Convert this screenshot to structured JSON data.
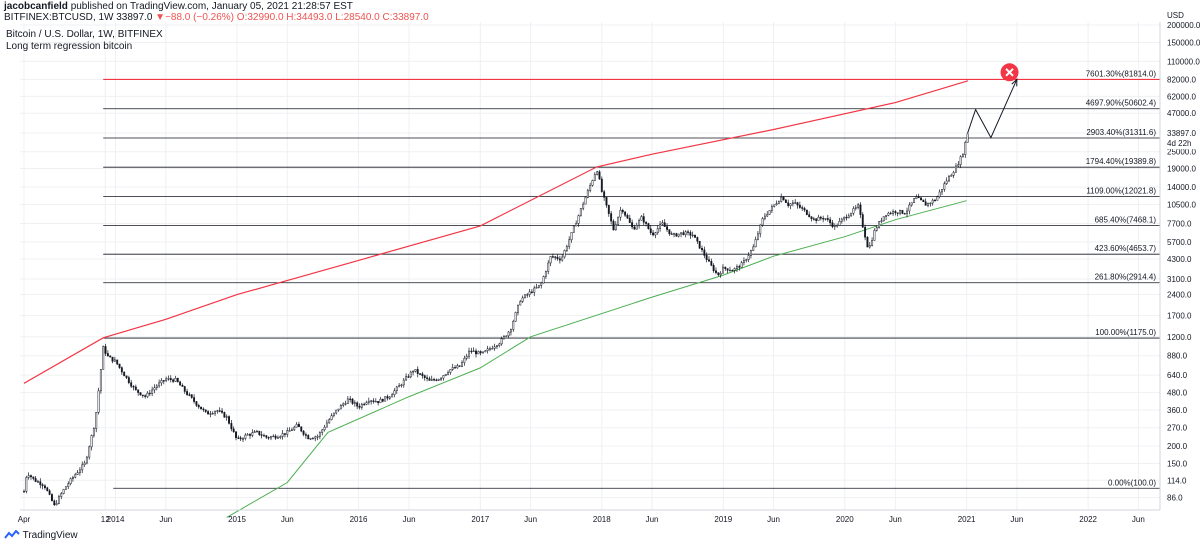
{
  "header": {
    "author": "jacobcanfield",
    "published": "published on TradingView.com, January 05, 2021 21:28:57 EST",
    "symbol": "BITFINEX:BTCUSD, 1W",
    "price": "33897.0",
    "change": "▼−88.0 (−0.26%)",
    "open": "O:32990.0",
    "high": "H:34493.0",
    "low": "L:28540.0",
    "close": "C:33897.0"
  },
  "legend": {
    "title": "Bitcoin / U.S. Dollar, 1W, BITFINEX",
    "subtitle": "Long term regression bitcoin"
  },
  "footer": {
    "brand": "TradingView"
  },
  "colors": {
    "candle_up": "#131722",
    "candle_down": "#131722",
    "fib_line": "#131722",
    "top_line": "#f23645",
    "upper_curve": "#f23645",
    "lower_curve": "#4caf50",
    "grid": "#eef0f3",
    "price_label_bg": "#131722"
  },
  "chart_data": {
    "type": "candlestick",
    "title": "Bitcoin / U.S. Dollar, 1W, BITFINEX",
    "log_scale": true,
    "grid": true,
    "currency": "USD",
    "y_ticks": [
      "200000.0",
      "150000.0",
      "110000.0",
      "82000.0",
      "62000.0",
      "47000.0",
      "34000.0",
      "25000.0",
      "19000.0",
      "14000.0",
      "10500.0",
      "7700.0",
      "5700.0",
      "4300.0",
      "3100.0",
      "2400.0",
      "1700.0",
      "1200.0",
      "880.0",
      "640.0",
      "480.0",
      "360.0",
      "270.0",
      "200.0",
      "150.0",
      "114.0",
      "86.0"
    ],
    "x_ticks": [
      "Apr",
      "12",
      "2014",
      "Jun",
      "2015",
      "Jun",
      "2016",
      "Jun",
      "2017",
      "Jun",
      "2018",
      "Jun",
      "2019",
      "Jun",
      "2020",
      "Jun",
      "2021",
      "Jun",
      "2022",
      "Jun"
    ],
    "current_price_label": "33897.0",
    "countdown_label": "4d 22h",
    "fib_levels": [
      {
        "label": "0.00%(100.0)",
        "price": 100.0
      },
      {
        "label": "100.00%(1175.0)",
        "price": 1175.0
      },
      {
        "label": "261.80%(2914.4)",
        "price": 2914.4
      },
      {
        "label": "423.60%(4653.7)",
        "price": 4653.7
      },
      {
        "label": "685.40%(7468.1)",
        "price": 7468.1
      },
      {
        "label": "1109.00%(12021.8)",
        "price": 12021.8
      },
      {
        "label": "1794.40%(19389.8)",
        "price": 19389.8
      },
      {
        "label": "2903.40%(31311.6)",
        "price": 31311.6
      },
      {
        "label": "4697.90%(50602.4)",
        "price": 50602.4
      },
      {
        "label": "7601.30%(81814.0)",
        "price": 81814.0,
        "highlight": true
      }
    ],
    "price_path": [
      {
        "date": "2013-04-01",
        "price": 95
      },
      {
        "date": "2013-04-10",
        "price": 130
      },
      {
        "date": "2013-05-01",
        "price": 115
      },
      {
        "date": "2013-06-01",
        "price": 105
      },
      {
        "date": "2013-07-01",
        "price": 75
      },
      {
        "date": "2013-08-01",
        "price": 100
      },
      {
        "date": "2013-09-01",
        "price": 125
      },
      {
        "date": "2013-10-01",
        "price": 150
      },
      {
        "date": "2013-11-01",
        "price": 300
      },
      {
        "date": "2013-11-25",
        "price": 1000
      },
      {
        "date": "2013-12-10",
        "price": 860
      },
      {
        "date": "2014-01-01",
        "price": 800
      },
      {
        "date": "2014-02-01",
        "price": 620
      },
      {
        "date": "2014-03-01",
        "price": 500
      },
      {
        "date": "2014-04-01",
        "price": 450
      },
      {
        "date": "2014-05-01",
        "price": 530
      },
      {
        "date": "2014-06-01",
        "price": 600
      },
      {
        "date": "2014-07-01",
        "price": 590
      },
      {
        "date": "2014-08-01",
        "price": 480
      },
      {
        "date": "2014-09-01",
        "price": 400
      },
      {
        "date": "2014-10-01",
        "price": 340
      },
      {
        "date": "2014-11-01",
        "price": 360
      },
      {
        "date": "2014-12-01",
        "price": 320
      },
      {
        "date": "2015-01-01",
        "price": 220
      },
      {
        "date": "2015-02-01",
        "price": 240
      },
      {
        "date": "2015-03-01",
        "price": 250
      },
      {
        "date": "2015-04-01",
        "price": 230
      },
      {
        "date": "2015-05-01",
        "price": 235
      },
      {
        "date": "2015-06-01",
        "price": 250
      },
      {
        "date": "2015-07-01",
        "price": 280
      },
      {
        "date": "2015-08-01",
        "price": 230
      },
      {
        "date": "2015-09-01",
        "price": 235
      },
      {
        "date": "2015-10-01",
        "price": 300
      },
      {
        "date": "2015-11-01",
        "price": 370
      },
      {
        "date": "2015-12-01",
        "price": 430
      },
      {
        "date": "2016-01-01",
        "price": 380
      },
      {
        "date": "2016-02-01",
        "price": 430
      },
      {
        "date": "2016-03-01",
        "price": 415
      },
      {
        "date": "2016-04-01",
        "price": 450
      },
      {
        "date": "2016-05-01",
        "price": 530
      },
      {
        "date": "2016-06-15",
        "price": 700
      },
      {
        "date": "2016-07-01",
        "price": 650
      },
      {
        "date": "2016-08-01",
        "price": 580
      },
      {
        "date": "2016-09-01",
        "price": 610
      },
      {
        "date": "2016-10-01",
        "price": 700
      },
      {
        "date": "2016-11-01",
        "price": 740
      },
      {
        "date": "2016-12-01",
        "price": 960
      },
      {
        "date": "2017-01-05",
        "price": 900
      },
      {
        "date": "2017-02-01",
        "price": 1000
      },
      {
        "date": "2017-03-01",
        "price": 1100
      },
      {
        "date": "2017-04-01",
        "price": 1350
      },
      {
        "date": "2017-05-01",
        "price": 2200
      },
      {
        "date": "2017-06-01",
        "price": 2500
      },
      {
        "date": "2017-07-01",
        "price": 2800
      },
      {
        "date": "2017-08-01",
        "price": 4500
      },
      {
        "date": "2017-09-01",
        "price": 4300
      },
      {
        "date": "2017-10-01",
        "price": 6400
      },
      {
        "date": "2017-11-01",
        "price": 10000
      },
      {
        "date": "2017-12-17",
        "price": 19000
      },
      {
        "date": "2018-01-01",
        "price": 13000
      },
      {
        "date": "2018-02-05",
        "price": 7000
      },
      {
        "date": "2018-03-01",
        "price": 10000
      },
      {
        "date": "2018-04-05",
        "price": 7000
      },
      {
        "date": "2018-05-01",
        "price": 8500
      },
      {
        "date": "2018-06-01",
        "price": 6400
      },
      {
        "date": "2018-07-01",
        "price": 7700
      },
      {
        "date": "2018-08-01",
        "price": 6300
      },
      {
        "date": "2018-09-01",
        "price": 6600
      },
      {
        "date": "2018-10-01",
        "price": 6400
      },
      {
        "date": "2018-11-20",
        "price": 4000
      },
      {
        "date": "2018-12-15",
        "price": 3300
      },
      {
        "date": "2019-01-01",
        "price": 3700
      },
      {
        "date": "2019-02-01",
        "price": 3600
      },
      {
        "date": "2019-03-01",
        "price": 4000
      },
      {
        "date": "2019-04-01",
        "price": 5200
      },
      {
        "date": "2019-05-01",
        "price": 8500
      },
      {
        "date": "2019-06-26",
        "price": 12000
      },
      {
        "date": "2019-07-15",
        "price": 10500
      },
      {
        "date": "2019-08-01",
        "price": 10800
      },
      {
        "date": "2019-09-01",
        "price": 9500
      },
      {
        "date": "2019-10-01",
        "price": 8200
      },
      {
        "date": "2019-11-01",
        "price": 8500
      },
      {
        "date": "2019-12-01",
        "price": 7300
      },
      {
        "date": "2020-01-01",
        "price": 8500
      },
      {
        "date": "2020-02-10",
        "price": 10200
      },
      {
        "date": "2020-03-12",
        "price": 5000
      },
      {
        "date": "2020-04-01",
        "price": 7000
      },
      {
        "date": "2020-05-01",
        "price": 9000
      },
      {
        "date": "2020-06-01",
        "price": 9400
      },
      {
        "date": "2020-07-01",
        "price": 9200
      },
      {
        "date": "2020-08-01",
        "price": 11800
      },
      {
        "date": "2020-09-01",
        "price": 10500
      },
      {
        "date": "2020-10-01",
        "price": 11500
      },
      {
        "date": "2020-11-01",
        "price": 15500
      },
      {
        "date": "2020-12-01",
        "price": 19500
      },
      {
        "date": "2020-12-20",
        "price": 24000
      },
      {
        "date": "2021-01-04",
        "price": 33897
      }
    ],
    "upper_regression": [
      {
        "date": "2013-04-01",
        "price": 560
      },
      {
        "date": "2013-11-25",
        "price": 1180
      },
      {
        "date": "2014-06-01",
        "price": 1600
      },
      {
        "date": "2015-01-01",
        "price": 2400
      },
      {
        "date": "2016-01-01",
        "price": 4200
      },
      {
        "date": "2017-01-01",
        "price": 7400
      },
      {
        "date": "2017-12-17",
        "price": 19500
      },
      {
        "date": "2018-06-01",
        "price": 24000
      },
      {
        "date": "2019-06-01",
        "price": 36000
      },
      {
        "date": "2020-06-01",
        "price": 56000
      },
      {
        "date": "2021-01-05",
        "price": 80000
      }
    ],
    "lower_regression": [
      {
        "date": "2014-12-01",
        "price": 62
      },
      {
        "date": "2015-06-01",
        "price": 110
      },
      {
        "date": "2015-10-01",
        "price": 250
      },
      {
        "date": "2016-06-01",
        "price": 450
      },
      {
        "date": "2017-01-01",
        "price": 720
      },
      {
        "date": "2017-06-01",
        "price": 1200
      },
      {
        "date": "2018-06-01",
        "price": 2300
      },
      {
        "date": "2019-01-01",
        "price": 3300
      },
      {
        "date": "2019-06-01",
        "price": 4500
      },
      {
        "date": "2020-01-01",
        "price": 6200
      },
      {
        "date": "2020-06-01",
        "price": 8200
      },
      {
        "date": "2021-01-01",
        "price": 11200
      }
    ],
    "projection": [
      {
        "date": "2021-01-04",
        "price": 33897
      },
      {
        "date": "2021-01-28",
        "price": 50000
      },
      {
        "date": "2021-03-15",
        "price": 31500
      },
      {
        "date": "2021-06-01",
        "price": 82000
      }
    ],
    "target_marker": {
      "date": "2021-05-10",
      "price": 92000,
      "symbol": "x"
    }
  }
}
